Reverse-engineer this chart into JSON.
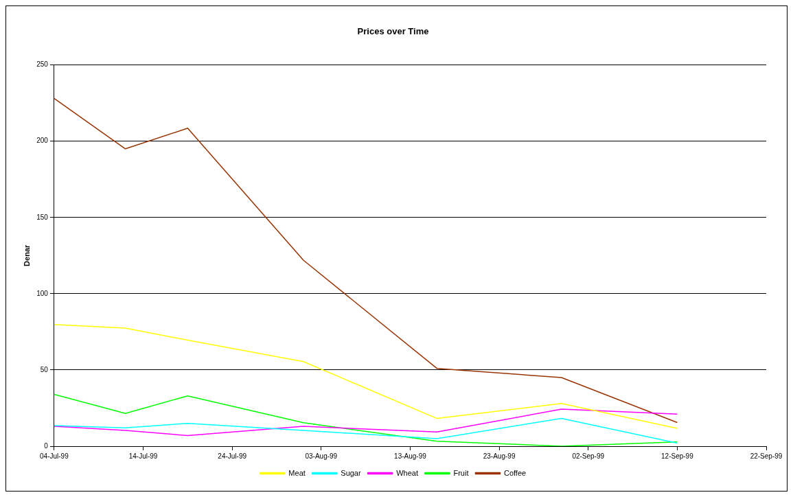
{
  "chart_data": {
    "type": "line",
    "title": "Prices over Time",
    "ylabel": "Denar",
    "x": [
      "1999-07-04",
      "1999-07-12",
      "1999-07-19",
      "1999-08-01",
      "1999-08-16",
      "1999-08-30",
      "1999-09-12"
    ],
    "series": [
      {
        "name": "Meat",
        "color": "#ffff00",
        "values": [
          79.8,
          77.4,
          69.5,
          55.5,
          18.2,
          28,
          11.7
        ]
      },
      {
        "name": "Sugar",
        "color": "#00ffff",
        "values": [
          13.5,
          12,
          15,
          10.3,
          5,
          18.2,
          2
        ]
      },
      {
        "name": "Wheat",
        "color": "#ff00ff",
        "values": [
          13,
          10.3,
          7,
          13,
          9.3,
          24.3,
          21
        ]
      },
      {
        "name": "Fruit",
        "color": "#00ff00",
        "values": [
          34,
          21.5,
          33,
          15.4,
          3.3,
          0,
          2.8
        ]
      },
      {
        "name": "Coffee",
        "color": "#993300",
        "values": [
          228,
          195,
          208.5,
          122,
          51,
          45,
          15.5
        ]
      }
    ],
    "xlim": [
      "1999-07-04",
      "1999-09-22"
    ],
    "xticks": [
      {
        "value": "1999-07-04",
        "label": "04-Jul-99"
      },
      {
        "value": "1999-07-14",
        "label": "14-Jul-99"
      },
      {
        "value": "1999-07-24",
        "label": "24-Jul-99"
      },
      {
        "value": "1999-08-03",
        "label": "03-Aug-99"
      },
      {
        "value": "1999-08-13",
        "label": "13-Aug-99"
      },
      {
        "value": "1999-08-23",
        "label": "23-Aug-99"
      },
      {
        "value": "1999-09-02",
        "label": "02-Sep-99"
      },
      {
        "value": "1999-09-12",
        "label": "12-Sep-99"
      },
      {
        "value": "1999-09-22",
        "label": "22-Sep-99"
      }
    ],
    "ylim": [
      0,
      250
    ],
    "yticks": [
      0,
      50,
      100,
      150,
      200,
      250
    ],
    "grid": "y",
    "legend": "bottom",
    "marker": "none",
    "line_style": "solid"
  }
}
